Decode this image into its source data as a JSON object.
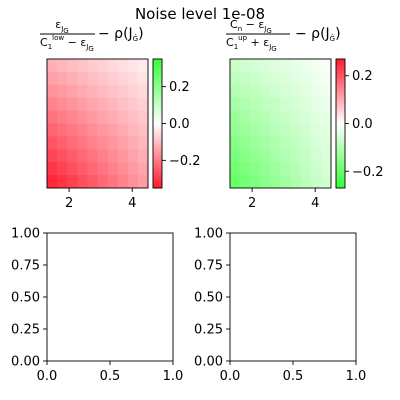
{
  "figure": {
    "suptitle": "Noise level 1e-08",
    "background": "#ffffff"
  },
  "colormaps": {
    "panel1": {
      "low": "#ff1a2d",
      "mid": "#ffffff",
      "high": "#33ff33",
      "note": "red at -0.35 to green at +0.35"
    },
    "panel2": {
      "low": "#33ff33",
      "mid": "#ffffff",
      "high": "#ff1a2d"
    }
  },
  "chart_data": [
    {
      "type": "heatmap",
      "panel": "top-left",
      "title_formula": {
        "frac_num": "ε_{J_G}",
        "frac_den": "C_1^{low} − ε_{J_G}",
        "tail": "− ρ(J_G)"
      },
      "x_extent": [
        1.3,
        4.5
      ],
      "xticks": [
        2,
        4
      ],
      "rows": 10,
      "cols": 10,
      "vmin": -0.35,
      "vmax": 0.35,
      "value_model": "bilinear, darkest red at bottom-left, near white at top-right",
      "corner_values": {
        "top_left": -0.12,
        "top_right": -0.03,
        "bottom_left": -0.33,
        "bottom_right": -0.15
      },
      "colorbar": {
        "ticks": [
          0.2,
          0.0,
          -0.2
        ],
        "tick_labels": [
          "0.2",
          "0.0",
          "−0.2"
        ],
        "vmin": -0.35,
        "vmax": 0.35
      }
    },
    {
      "type": "heatmap",
      "panel": "top-right",
      "title_formula": {
        "frac_num": "C_n − ε_{J_G}",
        "frac_den": "C_1^{up} + ε_{J_G}",
        "tail": "− ρ(J_G)"
      },
      "x_extent": [
        1.3,
        4.5
      ],
      "xticks": [
        2,
        4
      ],
      "rows": 10,
      "cols": 10,
      "vmin": -0.27,
      "vmax": 0.27,
      "value_model": "bilinear, strongest green at bottom-left, near white at top-right",
      "corner_values": {
        "top_left": -0.07,
        "top_right": -0.01,
        "bottom_left": -0.2,
        "bottom_right": -0.06
      },
      "colorbar": {
        "ticks": [
          0.2,
          0.0,
          -0.2
        ],
        "tick_labels": [
          "0.2",
          "0.0",
          "−0.2"
        ],
        "vmin": -0.27,
        "vmax": 0.27
      }
    },
    {
      "type": "line",
      "panel": "bottom-left",
      "series": [],
      "xlim": [
        0,
        1
      ],
      "ylim": [
        0,
        1
      ],
      "xticks": [
        "0.0",
        "0.5",
        "1.0"
      ],
      "yticks": [
        "0.00",
        "0.25",
        "0.50",
        "0.75",
        "1.00"
      ]
    },
    {
      "type": "line",
      "panel": "bottom-right",
      "series": [],
      "xlim": [
        0,
        1
      ],
      "ylim": [
        0,
        1
      ],
      "xticks": [
        "0.0",
        "0.5",
        "1.0"
      ],
      "yticks": [
        "0.00",
        "0.25",
        "0.50",
        "0.75",
        "1.00"
      ]
    }
  ]
}
